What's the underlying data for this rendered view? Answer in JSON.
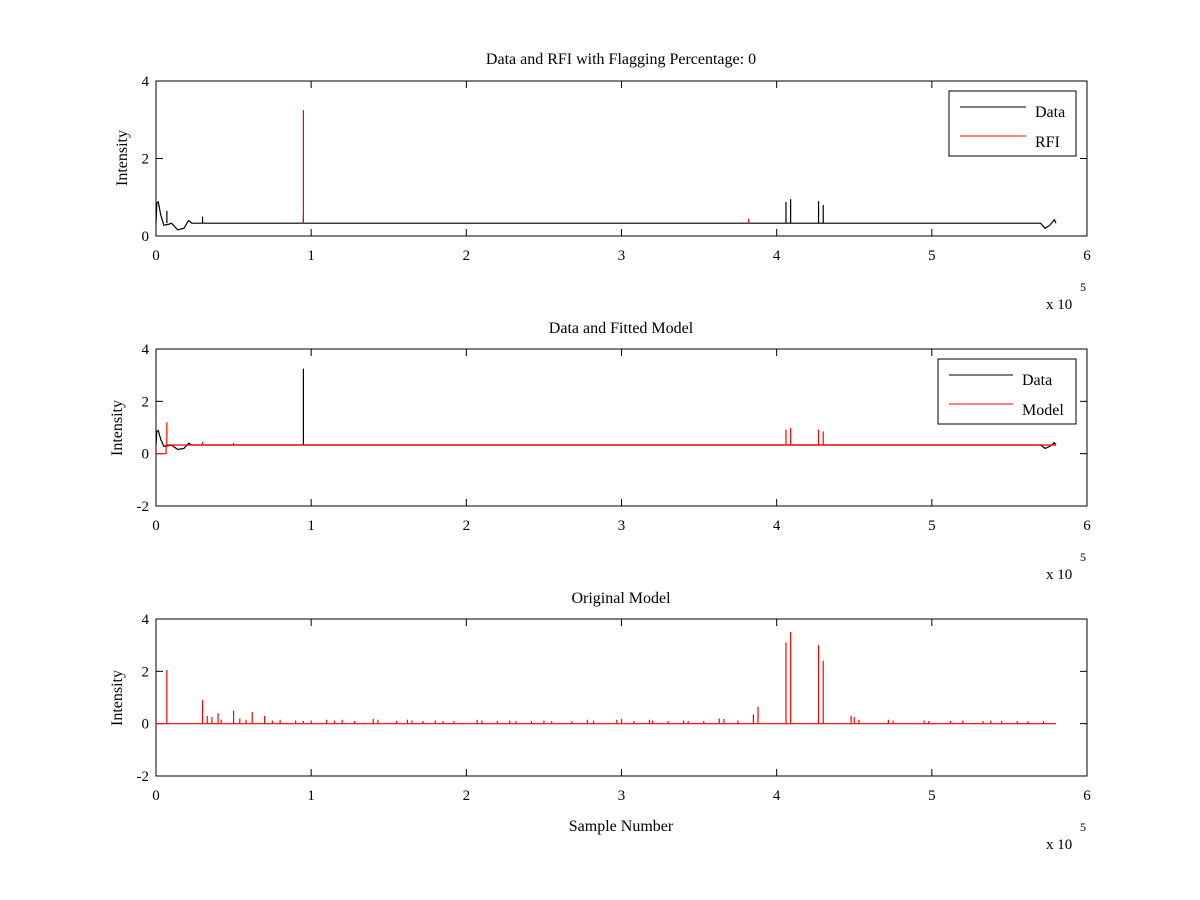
{
  "chart_data": [
    {
      "type": "line",
      "title": "Data and RFI with Flagging Percentage: 0",
      "xlabel": "",
      "ylabel": "Intensity",
      "xlim": [
        0,
        6
      ],
      "ylim": [
        0,
        4
      ],
      "xticks": [
        0,
        1,
        2,
        3,
        4,
        5,
        6
      ],
      "yticks": [
        0,
        2,
        4
      ],
      "x_multiplier_text": "x 10",
      "x_multiplier_exp": "5",
      "legend": {
        "placement": "top-right",
        "entries": [
          "Data",
          "RFI"
        ]
      },
      "grid": false,
      "baseline": 0.33,
      "series": [
        {
          "name": "Data",
          "color": "#000000",
          "wave": [
            [
              0.0,
              0.33
            ],
            [
              0.005,
              0.85
            ],
            [
              0.015,
              0.88
            ],
            [
              0.03,
              0.55
            ],
            [
              0.05,
              0.28
            ],
            [
              0.08,
              0.3
            ],
            [
              0.1,
              0.33
            ],
            [
              0.14,
              0.16
            ],
            [
              0.18,
              0.2
            ],
            [
              0.21,
              0.4
            ],
            [
              0.23,
              0.33
            ],
            [
              5.7,
              0.33
            ],
            [
              5.73,
              0.2
            ],
            [
              5.76,
              0.28
            ],
            [
              5.79,
              0.42
            ],
            [
              5.8,
              0.33
            ]
          ],
          "spikes": [
            [
              0.07,
              0.65
            ],
            [
              0.3,
              0.5
            ],
            [
              0.95,
              0.55
            ],
            [
              4.06,
              0.88
            ],
            [
              4.09,
              0.95
            ],
            [
              4.27,
              0.9
            ],
            [
              4.3,
              0.8
            ]
          ]
        },
        {
          "name": "RFI",
          "color": "#ff0000",
          "spikes": [
            [
              0.95,
              3.25
            ],
            [
              3.82,
              0.45
            ]
          ]
        }
      ]
    },
    {
      "type": "line",
      "title": "Data and Fitted Model",
      "xlabel": "",
      "ylabel": "Intensity",
      "xlim": [
        0,
        6
      ],
      "ylim": [
        -2,
        4
      ],
      "xticks": [
        0,
        1,
        2,
        3,
        4,
        5,
        6
      ],
      "yticks": [
        -2,
        0,
        2,
        4
      ],
      "x_multiplier_text": "x 10",
      "x_multiplier_exp": "5",
      "legend": {
        "placement": "top-right",
        "entries": [
          "Data",
          "Model"
        ]
      },
      "grid": false,
      "baseline": 0.33,
      "series": [
        {
          "name": "Data",
          "color": "#000000",
          "wave": [
            [
              0.0,
              0.33
            ],
            [
              0.005,
              0.85
            ],
            [
              0.015,
              0.88
            ],
            [
              0.03,
              0.55
            ],
            [
              0.05,
              0.28
            ],
            [
              0.08,
              0.3
            ],
            [
              0.1,
              0.33
            ],
            [
              0.14,
              0.16
            ],
            [
              0.18,
              0.2
            ],
            [
              0.21,
              0.4
            ],
            [
              0.23,
              0.33
            ],
            [
              5.7,
              0.33
            ],
            [
              5.73,
              0.2
            ],
            [
              5.76,
              0.28
            ],
            [
              5.79,
              0.42
            ],
            [
              5.8,
              0.33
            ]
          ],
          "spikes": [
            [
              0.95,
              3.25
            ]
          ]
        },
        {
          "name": "Model",
          "color": "#ff0000",
          "wave": [
            [
              0.0,
              0.0
            ],
            [
              0.065,
              0.0
            ],
            [
              0.065,
              0.33
            ],
            [
              5.8,
              0.33
            ]
          ],
          "spikes": [
            [
              0.07,
              1.2
            ],
            [
              0.3,
              0.45
            ],
            [
              0.5,
              0.42
            ],
            [
              4.06,
              0.92
            ],
            [
              4.09,
              0.98
            ],
            [
              4.27,
              0.92
            ],
            [
              4.3,
              0.85
            ]
          ]
        }
      ]
    },
    {
      "type": "line",
      "title": "Original Model",
      "xlabel": "Sample Number",
      "ylabel": "Intensity",
      "xlim": [
        0,
        6
      ],
      "ylim": [
        -2,
        4
      ],
      "xticks": [
        0,
        1,
        2,
        3,
        4,
        5,
        6
      ],
      "yticks": [
        -2,
        0,
        2,
        4
      ],
      "x_multiplier_text": "x 10",
      "x_multiplier_exp": "5",
      "grid": false,
      "baseline": 0.0,
      "series": [
        {
          "name": "Model",
          "color": "#ff0000",
          "wave": [
            [
              0.0,
              0.0
            ],
            [
              5.8,
              0.0
            ]
          ],
          "spikes": [
            [
              0.07,
              2.05
            ],
            [
              0.3,
              0.9
            ],
            [
              0.33,
              0.3
            ],
            [
              0.36,
              0.25
            ],
            [
              0.4,
              0.4
            ],
            [
              0.42,
              0.15
            ],
            [
              0.5,
              0.5
            ],
            [
              0.54,
              0.2
            ],
            [
              0.58,
              0.15
            ],
            [
              0.62,
              0.45
            ],
            [
              0.7,
              0.3
            ],
            [
              0.75,
              0.12
            ],
            [
              0.8,
              0.15
            ],
            [
              0.9,
              0.12
            ],
            [
              0.95,
              0.1
            ],
            [
              1.0,
              0.12
            ],
            [
              1.1,
              0.15
            ],
            [
              1.15,
              0.12
            ],
            [
              1.2,
              0.15
            ],
            [
              1.28,
              0.1
            ],
            [
              1.4,
              0.18
            ],
            [
              1.43,
              0.15
            ],
            [
              1.55,
              0.1
            ],
            [
              1.62,
              0.15
            ],
            [
              1.65,
              0.12
            ],
            [
              1.72,
              0.1
            ],
            [
              1.8,
              0.12
            ],
            [
              1.85,
              0.1
            ],
            [
              1.92,
              0.1
            ],
            [
              2.07,
              0.15
            ],
            [
              2.1,
              0.12
            ],
            [
              2.2,
              0.1
            ],
            [
              2.28,
              0.12
            ],
            [
              2.32,
              0.1
            ],
            [
              2.42,
              0.1
            ],
            [
              2.5,
              0.12
            ],
            [
              2.55,
              0.1
            ],
            [
              2.68,
              0.1
            ],
            [
              2.78,
              0.15
            ],
            [
              2.82,
              0.12
            ],
            [
              2.97,
              0.15
            ],
            [
              3.0,
              0.18
            ],
            [
              3.08,
              0.1
            ],
            [
              3.18,
              0.15
            ],
            [
              3.2,
              0.12
            ],
            [
              3.3,
              0.1
            ],
            [
              3.4,
              0.12
            ],
            [
              3.43,
              0.1
            ],
            [
              3.53,
              0.1
            ],
            [
              3.63,
              0.2
            ],
            [
              3.66,
              0.18
            ],
            [
              3.75,
              0.12
            ],
            [
              3.85,
              0.35
            ],
            [
              3.88,
              0.65
            ],
            [
              4.06,
              3.1
            ],
            [
              4.09,
              3.5
            ],
            [
              4.27,
              3.0
            ],
            [
              4.3,
              2.4
            ],
            [
              4.48,
              0.3
            ],
            [
              4.5,
              0.25
            ],
            [
              4.53,
              0.15
            ],
            [
              4.72,
              0.15
            ],
            [
              4.75,
              0.12
            ],
            [
              4.95,
              0.12
            ],
            [
              4.98,
              0.1
            ],
            [
              5.12,
              0.1
            ],
            [
              5.2,
              0.12
            ],
            [
              5.33,
              0.1
            ],
            [
              5.38,
              0.12
            ],
            [
              5.45,
              0.1
            ],
            [
              5.55,
              0.1
            ],
            [
              5.62,
              0.1
            ],
            [
              5.72,
              0.1
            ]
          ]
        }
      ]
    }
  ]
}
